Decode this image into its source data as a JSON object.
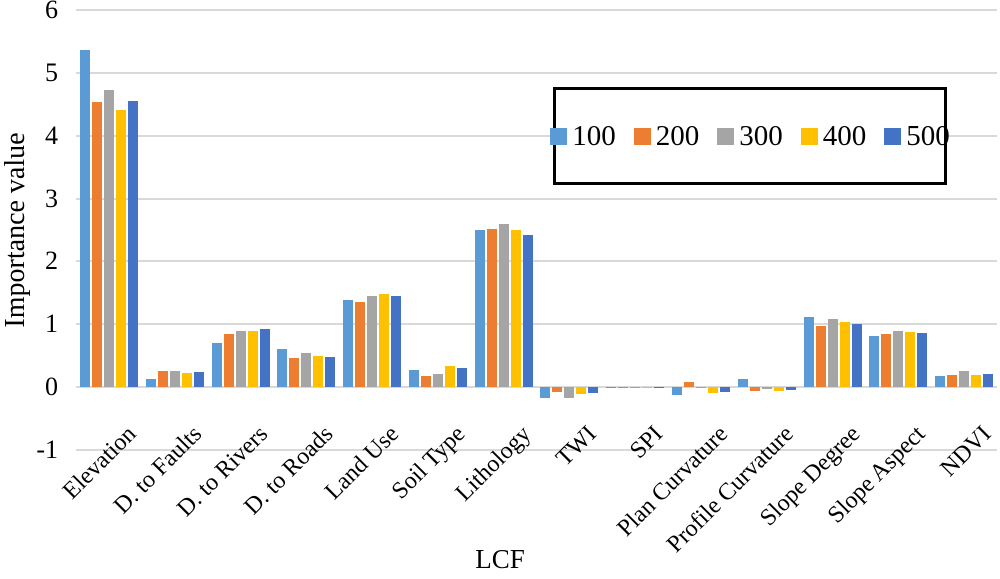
{
  "chart_data": {
    "type": "bar",
    "title": "",
    "xlabel": "LCF",
    "ylabel": "Importance value",
    "ylim": [
      -1,
      6
    ],
    "yticks": [
      6,
      5,
      4,
      3,
      2,
      1,
      0,
      -1
    ],
    "grid": true,
    "legend_position": "top-right",
    "categories": [
      "Elevation",
      "D. to Faults",
      "D. to Rivers",
      "D. to Roads",
      "Land Use",
      "Soil Type",
      "Lithology",
      "TWI",
      "SPI",
      "Plan Curvature",
      "Profile Curvature",
      "Slope Degree",
      "Slope Aspect",
      "NDVI"
    ],
    "series": [
      {
        "name": "100",
        "color": "#5B9BD5",
        "values": [
          5.37,
          0.13,
          0.7,
          0.6,
          1.39,
          0.27,
          2.5,
          -0.17,
          0.01,
          -0.13,
          0.13,
          1.12,
          0.82,
          0.18
        ]
      },
      {
        "name": "200",
        "color": "#ED7D31",
        "values": [
          4.53,
          0.26,
          0.85,
          0.46,
          1.35,
          0.18,
          2.52,
          -0.08,
          0.01,
          0.08,
          -0.06,
          0.97,
          0.84,
          0.2
        ]
      },
      {
        "name": "300",
        "color": "#A5A5A5",
        "values": [
          4.73,
          0.26,
          0.9,
          0.54,
          1.45,
          0.21,
          2.6,
          -0.17,
          0.01,
          -0.02,
          -0.03,
          1.09,
          0.89,
          0.26
        ]
      },
      {
        "name": "400",
        "color": "#FFC000",
        "values": [
          4.41,
          0.22,
          0.89,
          0.5,
          1.48,
          0.33,
          2.5,
          -0.11,
          0.01,
          -0.1,
          -0.06,
          1.03,
          0.88,
          0.19
        ]
      },
      {
        "name": "500",
        "color": "#4472C4",
        "values": [
          4.56,
          0.24,
          0.93,
          0.48,
          1.45,
          0.3,
          2.42,
          -0.1,
          0.01,
          -0.08,
          -0.05,
          1.0,
          0.86,
          0.21
        ]
      }
    ]
  },
  "colors": {
    "background": "#FFFFFF",
    "gridline": "#D9D9D9",
    "text": "#000000",
    "legend_border": "#000000"
  }
}
